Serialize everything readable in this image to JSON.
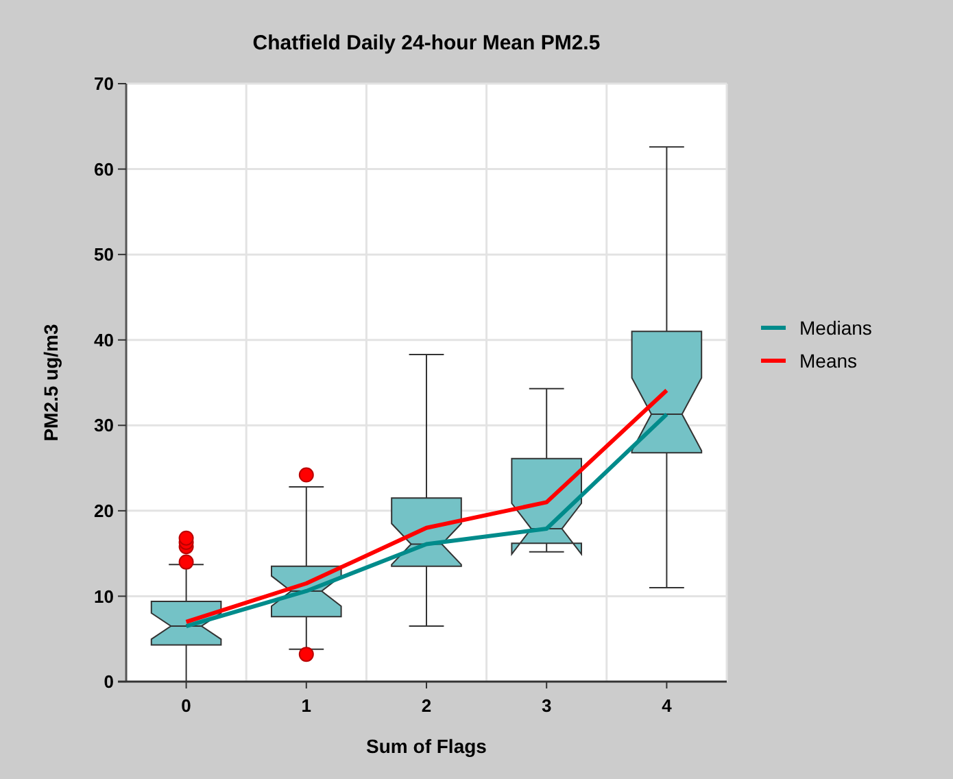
{
  "chart_data": {
    "type": "box",
    "title": "Chatfield Daily 24-hour Mean PM2.5",
    "xlabel": "Sum of Flags",
    "ylabel": "PM2.5 ug/m3",
    "categories": [
      "0",
      "1",
      "2",
      "3",
      "4"
    ],
    "color": "#74c2c6",
    "boxes": [
      {
        "low": 0,
        "q1": 4.3,
        "median": 6.5,
        "q3": 9.4,
        "high": 13.7,
        "outliers": [
          14,
          15.8,
          16.3,
          16.8
        ]
      },
      {
        "low": 3.8,
        "q1": 7.6,
        "median": 10.6,
        "q3": 13.5,
        "high": 22.8,
        "outliers": [
          3.2,
          24.2
        ]
      },
      {
        "low": 6.5,
        "q1": 13.5,
        "median": 16.1,
        "q3": 21.5,
        "high": 38.3
      },
      {
        "low": 15.2,
        "q1": 16.2,
        "median": 17.9,
        "q3": 26.1,
        "high": 34.3
      },
      {
        "low": 11,
        "q1": 26.8,
        "median": 31.3,
        "q3": 41,
        "high": 62.6
      }
    ],
    "series": [
      {
        "type": "line",
        "name": "Medians",
        "color": "#008b8b",
        "values": [
          6.5,
          10.6,
          16.1,
          17.9,
          31.3
        ]
      },
      {
        "type": "line",
        "name": "Means",
        "color": "#ff0000",
        "values": [
          7,
          11.5,
          18,
          21,
          34.1
        ]
      }
    ],
    "ylim": [
      0,
      70
    ],
    "yticks": [
      0,
      10,
      20,
      30,
      40,
      50,
      60,
      70
    ],
    "grid": true,
    "legend": "right",
    "marker": "none",
    "line_style": "solid"
  }
}
